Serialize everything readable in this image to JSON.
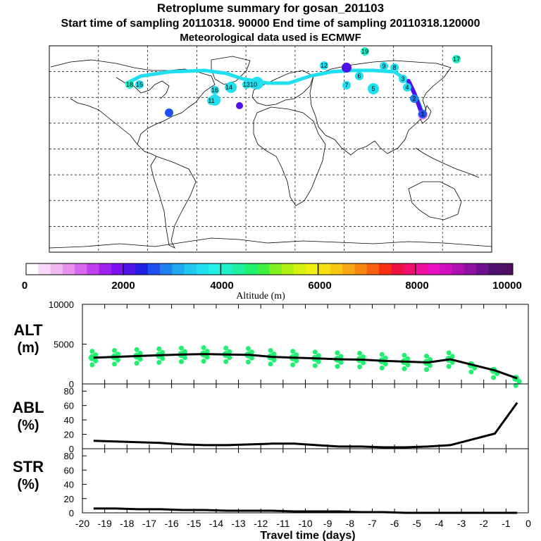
{
  "header": {
    "title": "Retroplume summary for gosan_201103",
    "sampling_line": "Start time of sampling 20110318. 90000     End time of sampling 20110318.120000",
    "meteo_line": "Meteorological data used is ECMWF"
  },
  "colorbar": {
    "label": "Altitude (m)",
    "ticks": [
      "0",
      "2000",
      "4000",
      "6000",
      "8000",
      "10000"
    ],
    "colors": [
      "#ffffff",
      "#f8d8f8",
      "#f0b8f0",
      "#e890f0",
      "#d868f0",
      "#c040f0",
      "#a020f0",
      "#8010f0",
      "#5010e8",
      "#2020e0",
      "#2050f0",
      "#2080f0",
      "#20a8f0",
      "#20c8f0",
      "#20e0f0",
      "#20f0e8",
      "#20f0c8",
      "#20f0a0",
      "#20f070",
      "#40f040",
      "#80f020",
      "#b0f010",
      "#d8f010",
      "#f0f010",
      "#f8e010",
      "#f8c810",
      "#f8a810",
      "#f88810",
      "#f86010",
      "#f83010",
      "#f01040",
      "#f01070",
      "#f010a0",
      "#e810c0",
      "#d010c0",
      "#b010b0",
      "#9010a0",
      "#701090",
      "#501070",
      "#501060"
    ]
  },
  "map": {
    "labels": [
      {
        "text": "13",
        "color": "#20e0f0"
      },
      {
        "text": "15",
        "color": "#20e0f0"
      },
      {
        "text": "12",
        "color": "#20e0f0"
      },
      {
        "text": "14",
        "color": "#20e0f0"
      },
      {
        "text": "11",
        "color": "#20e0f0"
      },
      {
        "text": "16",
        "color": "#20e0f0"
      },
      {
        "text": "9",
        "color": "#20e0f0"
      },
      {
        "text": "7",
        "color": "#20e0f0"
      },
      {
        "text": "5",
        "color": "#20e0f0"
      },
      {
        "text": "3",
        "color": "#20e0f0"
      },
      {
        "text": "17",
        "color": "#20f0c8"
      },
      {
        "text": "19",
        "color": "#20f0c8"
      },
      {
        "text": "18",
        "color": "#20f0c8"
      },
      {
        "text": "10",
        "color": "#20e0f0"
      },
      {
        "text": "8",
        "color": "#20e0f0"
      },
      {
        "text": "6",
        "color": "#20e0f0"
      },
      {
        "text": "4",
        "color": "#20e0f0"
      },
      {
        "text": "2",
        "color": "#2080f0"
      },
      {
        "text": "1",
        "color": "#2050f0"
      }
    ]
  },
  "chart_data": [
    {
      "type": "line",
      "title": "ALT (m)",
      "ylabel": "ALT (m)",
      "ylim": [
        0,
        10000
      ],
      "yticks": [
        "10000",
        "5000",
        "0"
      ],
      "x": [
        -19.5,
        -18.5,
        -17.5,
        -16.5,
        -15.5,
        -14.5,
        -13.5,
        -12.5,
        -11.5,
        -10.5,
        -9.5,
        -8.5,
        -7.5,
        -6.5,
        -5.5,
        -4.5,
        -3.5,
        -2.5,
        -1.5,
        -0.5
      ],
      "series": [
        {
          "name": "mean altitude",
          "values": [
            3300,
            3400,
            3500,
            3600,
            3700,
            3750,
            3700,
            3650,
            3400,
            3300,
            3200,
            3100,
            3050,
            2900,
            2800,
            2700,
            3100,
            2400,
            1700,
            700
          ]
        }
      ]
    },
    {
      "type": "line",
      "title": "ABL (%)",
      "ylabel": "ABL (%)",
      "ylim": [
        0,
        90
      ],
      "yticks": [
        "80",
        "60",
        "40",
        "20",
        "0"
      ],
      "x": [
        -19.5,
        -18.5,
        -17.5,
        -16.5,
        -15.5,
        -14.5,
        -13.5,
        -12.5,
        -11.5,
        -10.5,
        -9.5,
        -8.5,
        -7.5,
        -6.5,
        -5.5,
        -4.5,
        -3.5,
        -2.5,
        -1.5,
        -0.5
      ],
      "series": [
        {
          "name": "fraction in boundary layer",
          "values": [
            11,
            10,
            9,
            8,
            6,
            5,
            5,
            6,
            7,
            7,
            5,
            3,
            3,
            2,
            2,
            3,
            5,
            13,
            21,
            64
          ]
        }
      ]
    },
    {
      "type": "line",
      "title": "STR (%)",
      "ylabel": "STR (%)",
      "ylim": [
        0,
        90
      ],
      "yticks": [
        "80",
        "60",
        "40",
        "20",
        "0"
      ],
      "xlabel": "Travel time (days)",
      "xticks": [
        "-20",
        "-19",
        "-18",
        "-17",
        "-16",
        "-15",
        "-14",
        "-13",
        "-12",
        "-11",
        "-10",
        "-9",
        "-8",
        "-7",
        "-6",
        "-5",
        "-4",
        "-3",
        "-2",
        "-1",
        "0"
      ],
      "x": [
        -19.5,
        -18.5,
        -17.5,
        -16.5,
        -15.5,
        -14.5,
        -13.5,
        -12.5,
        -11.5,
        -10.5,
        -9.5,
        -8.5,
        -7.5,
        -6.5,
        -5.5,
        -4.5,
        -3.5,
        -2.5,
        -1.5,
        -0.5
      ],
      "series": [
        {
          "name": "fraction in stratosphere",
          "values": [
            6,
            6,
            5,
            5,
            4,
            4,
            3,
            3,
            3,
            2,
            2,
            2,
            1,
            1,
            0,
            0,
            0,
            0,
            0,
            0
          ]
        }
      ]
    }
  ]
}
